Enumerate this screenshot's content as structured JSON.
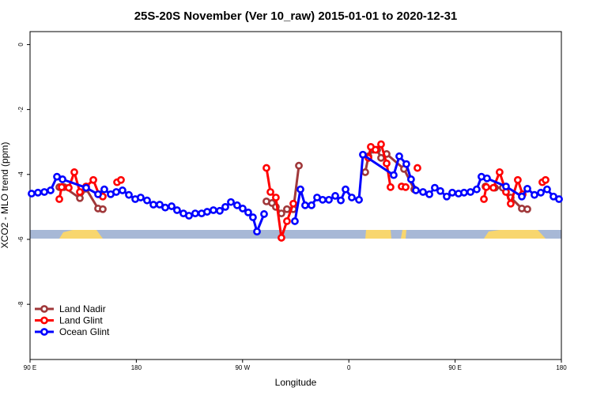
{
  "chart_data": {
    "type": "line",
    "title": "25S-20S November (Ver 10_raw)   2015-01-01 to 2020-12-31",
    "xlabel": "Longitude",
    "ylabel": "XCO2 - MLO trend (ppm)",
    "xlim": [
      90,
      540
    ],
    "ylim": [
      -9.7,
      0.4
    ],
    "xticks": [
      {
        "value": 90,
        "label": "90 E"
      },
      {
        "value": 180,
        "label": "180"
      },
      {
        "value": 270,
        "label": "90 W"
      },
      {
        "value": 360,
        "label": "0"
      },
      {
        "value": 450,
        "label": "90 E"
      },
      {
        "value": 540,
        "label": "180"
      }
    ],
    "yticks": [
      0,
      -2,
      -4,
      -6,
      -8
    ],
    "legend": "bottom-left",
    "series": [
      {
        "name": "Land Nadir",
        "color": "#a0383a",
        "x": [
          114.8,
          118.8,
          132.2,
          137.5,
          147.6,
          151.6,
          220,
          290.2,
          294.9,
          298.2,
          302.9,
          307.6,
          313.0,
          317.7,
          345,
          373.9,
          376.6,
          380.6,
          384.0,
          387.3,
          392.0,
          406.7,
          415.4,
          445,
          475.7,
          483.7,
          490.4,
          497.1,
          506.5,
          511.2
        ],
        "values": [
          -4.39,
          -4.39,
          -4.73,
          -4.44,
          -5.05,
          -5.07,
          null,
          -4.83,
          -4.88,
          -5.0,
          -5.2,
          -5.07,
          -5.07,
          -3.73,
          null,
          -3.93,
          -3.44,
          -3.24,
          -3.24,
          -3.49,
          -3.37,
          -3.83,
          -4.46,
          null,
          -4.37,
          -4.41,
          -4.41,
          -4.71,
          -5.05,
          -5.07
        ]
      },
      {
        "name": "Land Glint",
        "color": "#ff0000",
        "x": [
          114.8,
          116.8,
          122.8,
          127.5,
          132.2,
          137.5,
          143.6,
          148.3,
          151.6,
          157,
          163.7,
          167.0,
          230,
          290.2,
          293.6,
          298.2,
          302.9,
          307.6,
          313.0,
          345,
          376.6,
          378.6,
          382.6,
          387.3,
          392.0,
          395.3,
          400,
          404.7,
          408.1,
          413,
          418.1,
          445,
          474.4,
          476.4,
          482.4,
          487.7,
          493.1,
          497.1,
          503.1,
          507.2,
          515,
          523.9,
          526.6
        ],
        "values": [
          -4.76,
          -4.39,
          -4.41,
          -3.93,
          -4.54,
          -4.37,
          -4.17,
          -4.61,
          -4.68,
          null,
          -4.24,
          -4.17,
          null,
          -3.8,
          -4.54,
          -4.71,
          -5.95,
          -5.44,
          -4.9,
          null,
          -3.49,
          -3.15,
          -3.24,
          -3.07,
          -3.66,
          -4.39,
          null,
          -4.37,
          -4.39,
          null,
          -3.8,
          null,
          -4.76,
          -4.39,
          -4.41,
          -3.93,
          -4.54,
          -4.9,
          -4.17,
          -4.61,
          null,
          -4.24,
          -4.17
        ]
      },
      {
        "name": "Ocean Glint",
        "color": "#0000ff",
        "x": [
          91.3,
          96.7,
          102.1,
          107.4,
          112.8,
          117.5,
          137.5,
          147.6,
          152.9,
          158.3,
          163.0,
          168.3,
          173.7,
          179.1,
          183.7,
          189.1,
          194.5,
          199.8,
          204.5,
          209.9,
          214.5,
          219.9,
          224.6,
          229.9,
          235.3,
          240.0,
          245.3,
          250.7,
          255.4,
          260.1,
          265.4,
          270.1,
          274.8,
          278.8,
          282.2,
          288.2,
          300,
          314.3,
          319.0,
          323.0,
          328.4,
          333.1,
          337.8,
          343.1,
          348.5,
          353.2,
          357.2,
          362.5,
          368.6,
          371.9,
          398.0,
          402.7,
          408.7,
          412.7,
          416.8,
          422.8,
          428.2,
          432.8,
          437.5,
          442.9,
          447.6,
          452.9,
          457.6,
          463.0,
          468.3,
          472.3,
          477.0,
          493.1,
          506.5,
          511.2,
          517.2,
          522.6,
          527.9,
          533.3,
          538.0
        ],
        "values": [
          -4.59,
          -4.56,
          -4.54,
          -4.49,
          -4.07,
          -4.15,
          -4.41,
          -4.61,
          -4.46,
          -4.61,
          -4.54,
          -4.49,
          -4.63,
          -4.76,
          -4.71,
          -4.8,
          -4.93,
          -4.93,
          -5.02,
          -4.98,
          -5.1,
          -5.2,
          -5.27,
          -5.2,
          -5.2,
          -5.15,
          -5.1,
          -5.12,
          -5.0,
          -4.85,
          -4.95,
          -5.05,
          -5.17,
          -5.32,
          -5.76,
          -5.22,
          null,
          -5.44,
          -4.46,
          -4.95,
          -4.95,
          -4.71,
          -4.78,
          -4.78,
          -4.66,
          -4.8,
          -4.46,
          -4.71,
          -4.78,
          -3.39,
          -4.02,
          -3.44,
          -3.68,
          -4.15,
          -4.49,
          -4.54,
          -4.61,
          -4.41,
          -4.51,
          -4.68,
          -4.56,
          -4.59,
          -4.56,
          -4.54,
          -4.46,
          -4.07,
          -4.12,
          -4.37,
          -4.68,
          -4.44,
          -4.63,
          -4.56,
          -4.46,
          -4.68,
          -4.76
        ]
      }
    ]
  }
}
